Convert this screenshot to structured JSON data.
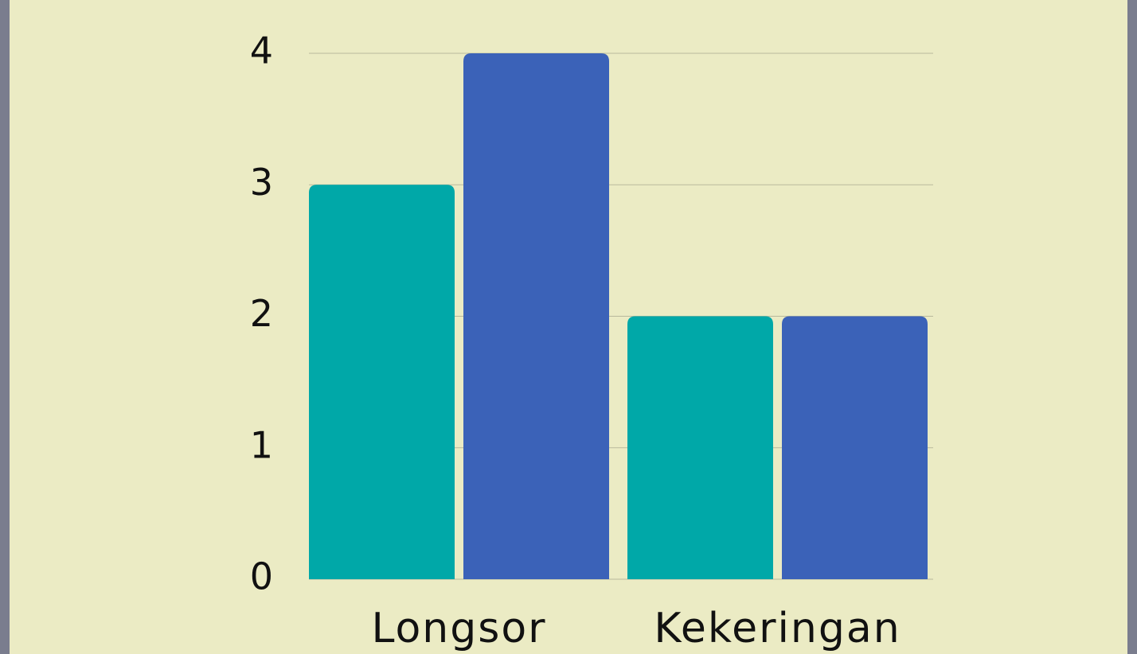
{
  "chart_data": {
    "type": "bar",
    "categories": [
      "Longsor",
      "Kekeringan"
    ],
    "series": [
      {
        "color": "#00a8a8",
        "values": [
          3,
          2
        ]
      },
      {
        "color": "#3b62b8",
        "values": [
          4,
          2
        ]
      }
    ],
    "ylim": [
      0,
      4
    ],
    "yticks": [
      0,
      1,
      2,
      3,
      4
    ],
    "grid": true
  }
}
